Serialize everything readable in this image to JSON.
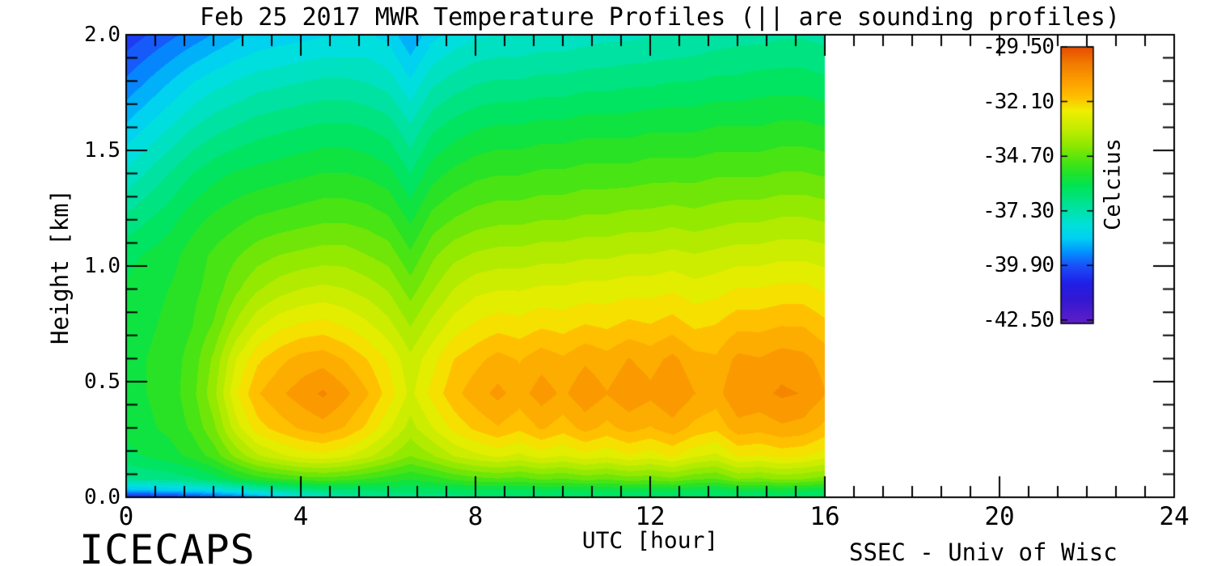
{
  "footer": {
    "left": "ICECAPS",
    "right": "SSEC - Univ of Wisc"
  },
  "chart_data": {
    "type": "heatmap",
    "title": "Feb 25 2017 MWR Temperature Profiles (|| are sounding profiles)",
    "xlabel": "UTC [hour]",
    "ylabel": "Height [km]",
    "xlim": [
      0,
      24
    ],
    "ylim": [
      0,
      2
    ],
    "data_tmax": 16,
    "x_ticks": {
      "values": [
        0,
        4,
        8,
        12,
        16,
        20,
        24
      ],
      "labels": [
        "0",
        "4",
        "8",
        "12",
        "16",
        "20",
        "24"
      ],
      "minor_step": 0.66667
    },
    "y_ticks": {
      "values": [
        0,
        0.5,
        1,
        1.5,
        2
      ],
      "labels": [
        "0.0",
        "0.5",
        "1.0",
        "1.5",
        "2.0"
      ],
      "minor_step": 0.1
    },
    "colorbar": {
      "title": "Celcius",
      "vmin": -42.66,
      "vmax": -29.5,
      "tick_values": [
        -29.5,
        -32.1,
        -34.7,
        -37.3,
        -39.9,
        -42.5
      ],
      "tick_labels": [
        "-29.50",
        "-32.10",
        "-34.70",
        "-37.30",
        "-39.90",
        "-42.50"
      ]
    },
    "levels_step": 0.44,
    "colormap": [
      [
        -42.66,
        "#5C20C4"
      ],
      [
        -42.5,
        "#5A1EC8"
      ],
      [
        -41.5,
        "#3318D2"
      ],
      [
        -40.7,
        "#2020E8"
      ],
      [
        -39.9,
        "#1A50F8"
      ],
      [
        -39.2,
        "#0096FF"
      ],
      [
        -38.6,
        "#00CFF4"
      ],
      [
        -38.0,
        "#00E0DC"
      ],
      [
        -37.3,
        "#00E2AC"
      ],
      [
        -36.7,
        "#00E380"
      ],
      [
        -36.1,
        "#00E455"
      ],
      [
        -35.5,
        "#22E22A"
      ],
      [
        -35.0,
        "#44E414"
      ],
      [
        -34.2,
        "#8CE800"
      ],
      [
        -33.4,
        "#C2EC00"
      ],
      [
        -32.5,
        "#F0EE00"
      ],
      [
        -31.9,
        "#FFC100"
      ],
      [
        -31.1,
        "#FC9E00"
      ],
      [
        -30.3,
        "#F27C00"
      ],
      [
        -29.5,
        "#E84E00"
      ]
    ],
    "grid": {
      "t": [
        0,
        0.5,
        1,
        1.5,
        2,
        2.5,
        3,
        3.5,
        4,
        4.5,
        5,
        5.5,
        6,
        6.5,
        7,
        7.5,
        8,
        8.5,
        9,
        9.5,
        10,
        10.5,
        11,
        11.5,
        12,
        12.5,
        13,
        13.5,
        14,
        14.5,
        15,
        15.5,
        16
      ],
      "h": [
        0.0,
        0.03,
        0.08,
        0.18,
        0.3,
        0.45,
        0.6,
        0.75,
        0.9,
        1.05,
        1.2,
        1.4,
        1.6,
        1.8,
        2.0
      ],
      "values": [
        [
          -40.9,
          -40.7,
          -40.5,
          -40.3,
          -40.0,
          -39.7,
          -39.3,
          -38.8,
          -38.2,
          -37.7,
          -37.3,
          -37.1,
          -36.9,
          -36.8,
          -36.7,
          -36.7,
          -36.6,
          -36.6,
          -36.6,
          -36.5,
          -36.5,
          -36.5,
          -36.5,
          -36.4,
          -36.4,
          -36.4,
          -36.5,
          -36.6,
          -36.4,
          -36.4,
          -36.3,
          -36.4,
          -36.5
        ],
        [
          -38.9,
          -38.8,
          -38.7,
          -38.5,
          -38.3,
          -38.0,
          -37.6,
          -37.2,
          -36.9,
          -36.7,
          -36.6,
          -36.5,
          -36.4,
          -36.4,
          -36.3,
          -36.3,
          -36.2,
          -36.2,
          -36.2,
          -36.1,
          -36.1,
          -36.1,
          -36.1,
          -36.0,
          -36.0,
          -36.0,
          -36.1,
          -36.2,
          -36.0,
          -36.0,
          -35.9,
          -36.0,
          -36.1
        ],
        [
          -37.0,
          -36.9,
          -36.8,
          -36.6,
          -36.3,
          -35.8,
          -35.4,
          -35.2,
          -35.0,
          -34.9,
          -35.0,
          -35.2,
          -35.4,
          -35.6,
          -35.4,
          -35.1,
          -34.9,
          -34.8,
          -34.9,
          -34.7,
          -34.8,
          -34.6,
          -34.7,
          -34.5,
          -34.6,
          -34.4,
          -34.7,
          -34.8,
          -34.3,
          -34.4,
          -34.2,
          -34.3,
          -34.5
        ],
        [
          -36.2,
          -36.0,
          -35.8,
          -35.5,
          -35.0,
          -34.2,
          -33.5,
          -33.1,
          -32.8,
          -32.7,
          -32.9,
          -33.3,
          -33.8,
          -34.3,
          -33.9,
          -33.4,
          -33.1,
          -32.9,
          -33.1,
          -32.8,
          -33.0,
          -32.7,
          -32.9,
          -32.6,
          -32.8,
          -32.5,
          -32.9,
          -33.1,
          -32.5,
          -32.6,
          -32.4,
          -32.5,
          -32.8
        ],
        [
          -35.9,
          -35.7,
          -35.5,
          -35.1,
          -34.4,
          -33.2,
          -32.3,
          -31.9,
          -31.6,
          -31.4,
          -31.7,
          -32.2,
          -32.9,
          -33.6,
          -33.0,
          -32.4,
          -32.0,
          -31.7,
          -32.0,
          -31.6,
          -31.9,
          -31.5,
          -31.8,
          -31.5,
          -31.7,
          -31.4,
          -31.8,
          -32.0,
          -31.4,
          -31.5,
          -31.3,
          -31.4,
          -31.8
        ],
        [
          -35.8,
          -35.6,
          -35.4,
          -34.9,
          -34.0,
          -32.6,
          -31.7,
          -31.3,
          -31.0,
          -30.7,
          -31.1,
          -31.6,
          -32.3,
          -33.1,
          -32.4,
          -31.8,
          -31.4,
          -31.1,
          -31.4,
          -31.0,
          -31.3,
          -30.9,
          -31.2,
          -30.9,
          -31.1,
          -30.8,
          -31.2,
          -31.4,
          -30.8,
          -30.9,
          -30.7,
          -30.8,
          -31.2
        ],
        [
          -35.8,
          -35.6,
          -35.4,
          -35.0,
          -34.2,
          -33.0,
          -32.2,
          -31.8,
          -31.5,
          -31.4,
          -31.7,
          -32.1,
          -32.6,
          -33.3,
          -32.7,
          -32.1,
          -31.8,
          -31.5,
          -31.7,
          -31.4,
          -31.6,
          -31.3,
          -31.5,
          -31.2,
          -31.4,
          -31.1,
          -31.5,
          -31.6,
          -31.1,
          -31.2,
          -31.0,
          -31.1,
          -31.4
        ],
        [
          -35.9,
          -35.7,
          -35.5,
          -35.2,
          -34.7,
          -33.8,
          -33.1,
          -32.7,
          -32.5,
          -32.4,
          -32.6,
          -32.9,
          -33.3,
          -33.9,
          -33.3,
          -32.8,
          -32.5,
          -32.3,
          -32.4,
          -32.2,
          -32.3,
          -32.1,
          -32.2,
          -32.0,
          -32.1,
          -31.9,
          -32.2,
          -32.1,
          -31.8,
          -31.8,
          -31.7,
          -31.7,
          -32.0
        ],
        [
          -36.0,
          -35.8,
          -35.6,
          -35.3,
          -35.0,
          -34.4,
          -33.9,
          -33.6,
          -33.4,
          -33.3,
          -33.4,
          -33.6,
          -33.9,
          -34.5,
          -33.9,
          -33.4,
          -33.1,
          -33.0,
          -33.0,
          -32.9,
          -32.9,
          -32.8,
          -32.8,
          -32.7,
          -32.7,
          -32.6,
          -32.8,
          -32.7,
          -32.5,
          -32.5,
          -32.4,
          -32.4,
          -32.6
        ],
        [
          -36.2,
          -36.0,
          -35.8,
          -35.4,
          -35.1,
          -34.8,
          -34.5,
          -34.3,
          -34.2,
          -34.1,
          -34.1,
          -34.3,
          -34.5,
          -35.1,
          -34.4,
          -34.0,
          -33.8,
          -33.7,
          -33.7,
          -33.6,
          -33.6,
          -33.5,
          -33.5,
          -33.4,
          -33.4,
          -33.3,
          -33.4,
          -33.3,
          -33.2,
          -33.2,
          -33.1,
          -33.1,
          -33.2
        ],
        [
          -36.8,
          -36.5,
          -36.2,
          -35.8,
          -35.5,
          -35.3,
          -35.1,
          -35.0,
          -34.9,
          -34.8,
          -34.8,
          -34.9,
          -35.1,
          -35.7,
          -35.0,
          -34.7,
          -34.5,
          -34.4,
          -34.4,
          -34.3,
          -34.3,
          -34.2,
          -34.2,
          -34.1,
          -34.1,
          -34.0,
          -34.1,
          -34.0,
          -33.9,
          -33.9,
          -33.8,
          -33.8,
          -33.9
        ],
        [
          -37.7,
          -37.3,
          -36.9,
          -36.5,
          -36.2,
          -36.0,
          -35.9,
          -35.8,
          -35.7,
          -35.6,
          -35.6,
          -35.7,
          -35.9,
          -36.5,
          -35.8,
          -35.5,
          -35.3,
          -35.2,
          -35.2,
          -35.1,
          -35.1,
          -35.0,
          -35.0,
          -35.0,
          -34.9,
          -34.9,
          -34.9,
          -34.8,
          -34.8,
          -34.8,
          -34.7,
          -34.7,
          -34.8
        ],
        [
          -38.6,
          -38.2,
          -37.8,
          -37.4,
          -37.1,
          -36.9,
          -36.7,
          -36.6,
          -36.5,
          -36.4,
          -36.4,
          -36.5,
          -36.7,
          -37.3,
          -36.6,
          -36.3,
          -36.1,
          -36.0,
          -36.0,
          -35.9,
          -35.9,
          -35.8,
          -35.8,
          -35.8,
          -35.7,
          -35.7,
          -35.7,
          -35.6,
          -35.6,
          -35.6,
          -35.5,
          -35.5,
          -35.6
        ],
        [
          -39.5,
          -39.1,
          -38.7,
          -38.3,
          -38.0,
          -37.8,
          -37.6,
          -37.5,
          -37.4,
          -37.3,
          -37.3,
          -37.4,
          -37.6,
          -38.2,
          -37.5,
          -37.2,
          -37.0,
          -36.9,
          -36.9,
          -36.8,
          -36.8,
          -36.7,
          -36.7,
          -36.6,
          -36.6,
          -36.5,
          -36.5,
          -36.4,
          -36.4,
          -36.3,
          -36.3,
          -36.3,
          -36.4
        ],
        [
          -40.3,
          -40.0,
          -39.7,
          -39.4,
          -39.1,
          -38.8,
          -38.6,
          -38.5,
          -38.4,
          -38.3,
          -38.3,
          -38.2,
          -38.4,
          -39.1,
          -38.4,
          -38.1,
          -37.9,
          -37.8,
          -37.8,
          -37.7,
          -37.7,
          -37.6,
          -37.5,
          -37.5,
          -37.4,
          -37.4,
          -37.3,
          -37.2,
          -37.1,
          -37.1,
          -37.0,
          -37.0,
          -37.1
        ]
      ]
    }
  }
}
